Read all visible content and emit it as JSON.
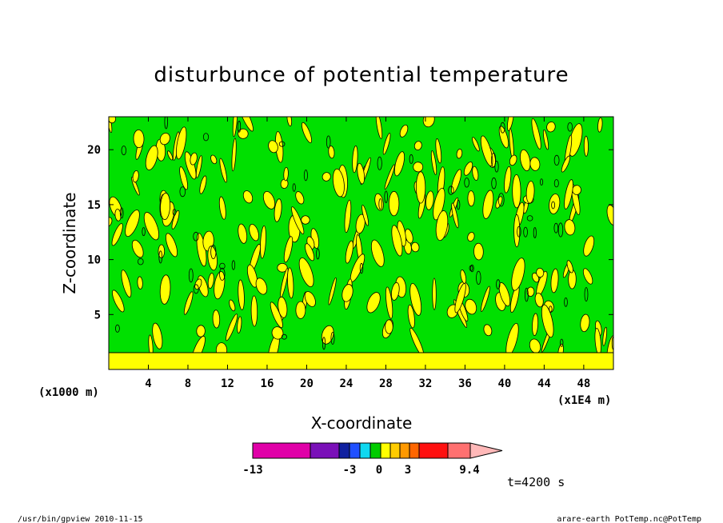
{
  "chart_data": {
    "type": "heatmap",
    "title": "disturbunce of potential temperature",
    "xlabel": "X-coordinate",
    "ylabel": "Z-coordinate",
    "x_unit": "(x1E4 m)",
    "y_unit": "(x1000 m)",
    "xlim": [
      0,
      51
    ],
    "ylim": [
      0,
      23
    ],
    "x_ticks": [
      "4",
      "8",
      "12",
      "16",
      "20",
      "24",
      "28",
      "32",
      "36",
      "40",
      "44",
      "48"
    ],
    "y_ticks": [
      "5",
      "10",
      "15",
      "20"
    ],
    "colorbar": {
      "tick_labels": [
        "-13",
        "-3",
        "0",
        "3",
        "9.4"
      ],
      "levels": [
        -13,
        -7,
        -4,
        -3,
        -2,
        -1,
        0,
        1,
        2,
        3,
        4,
        5,
        7,
        9.4
      ],
      "colors": [
        "#e000a8",
        "#7a10b8",
        "#1020a0",
        "#2050ff",
        "#10d8f0",
        "#00cc00",
        "#ffff00",
        "#ffcc00",
        "#ff9900",
        "#ff6600",
        "#ff1010",
        "#ff7070",
        "#ffb8b8"
      ]
    },
    "dominant_fill": {
      "background": "#00e000",
      "positive": "#ffff00"
    },
    "time_label": "t=4200 s"
  },
  "footer": {
    "left": "/usr/bin/gpview   2010-11-15",
    "right": "arare-earth_PotTemp.nc@PotTemp"
  }
}
